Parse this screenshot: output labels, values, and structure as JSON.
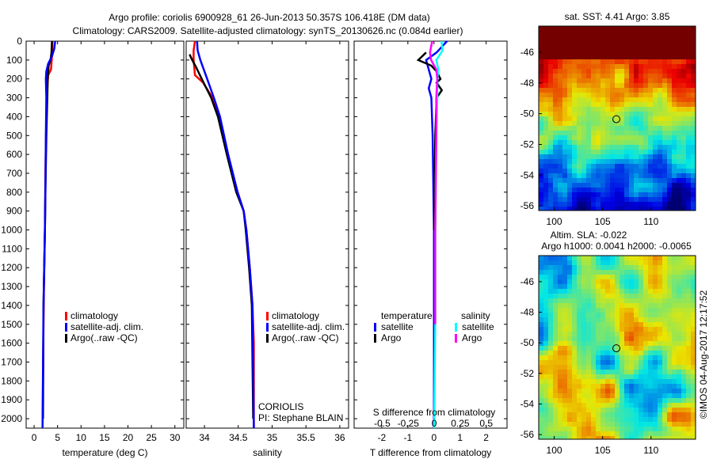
{
  "title": {
    "line1": "Argo profile: coriolis 6900928_61 26-Jun-2013 50.357S 106.418E (DM data)",
    "line2": "Climatology: CARS2009. Satellite-adjusted climatology: synTS_20130626.nc (0.084d earlier)"
  },
  "footer": "©IMOS 04-Aug-2017 12:17:52",
  "colors": {
    "climatology": "#ff0000",
    "satellite": "#0000ff",
    "argo": "#000000",
    "sal_satellite": "#00ffff",
    "sal_argo": "#ff00ff"
  },
  "chart_data": [
    {
      "type": "line",
      "id": "temperature",
      "xlabel": "temperature (deg C)",
      "xlim": [
        -1.7,
        31.9
      ],
      "ylim": [
        0,
        2050
      ],
      "xticks": [
        "0",
        "5",
        "10",
        "15",
        "20",
        "25",
        "30"
      ],
      "xtick_values": [
        0,
        5,
        10,
        15,
        20,
        25,
        30
      ],
      "yticks": [
        "0",
        "100",
        "200",
        "300",
        "400",
        "500",
        "600",
        "700",
        "800",
        "900",
        "1000",
        "1100",
        "1200",
        "1300",
        "1400",
        "1500",
        "1600",
        "1700",
        "1800",
        "1900",
        "2000"
      ],
      "legend": [
        "climatology",
        "satellite-adj. clim.",
        "Argo(..raw -QC)"
      ],
      "series": [
        {
          "name": "climatology",
          "color": "#ff0000",
          "depth": [
            0,
            80,
            150,
            180,
            250,
            400,
            700,
            1000,
            1300,
            1500,
            1800,
            2050
          ],
          "values": [
            3.9,
            3.8,
            3.6,
            3.0,
            2.8,
            2.6,
            2.4,
            2.3,
            2.1,
            2.0,
            1.9,
            1.8
          ]
        },
        {
          "name": "Argo",
          "color": "#000000",
          "depth": [
            0,
            60,
            100,
            130,
            200,
            300,
            500,
            800,
            1000,
            1400,
            2000
          ],
          "values": [
            3.8,
            3.7,
            3.5,
            3.1,
            2.9,
            2.8,
            2.6,
            2.4,
            2.3,
            2.0,
            1.9
          ]
        },
        {
          "name": "satellite",
          "color": "#0000ff",
          "depth": [
            0,
            40,
            80,
            120,
            160,
            200,
            300,
            500,
            800,
            1000,
            1400,
            2050
          ],
          "values": [
            4.5,
            4.3,
            3.8,
            3.0,
            2.6,
            2.5,
            2.6,
            2.5,
            2.4,
            2.3,
            2.0,
            1.8
          ]
        }
      ]
    },
    {
      "type": "line",
      "id": "salinity",
      "xlabel": "salinity",
      "xlim": [
        33.73,
        36.13
      ],
      "ylim": [
        0,
        2050
      ],
      "xticks": [
        "34",
        "34.5",
        "35",
        "35.5",
        "36"
      ],
      "xtick_values": [
        34,
        34.5,
        35,
        35.5,
        36
      ],
      "legend": [
        "climatology",
        "satellite-adj. clim.",
        "Argo(..raw -QC)"
      ],
      "annotation": [
        "CORIOLIS",
        "PI: Stephane BLAIN"
      ],
      "series": [
        {
          "name": "climatology",
          "color": "#ff0000",
          "depth": [
            0,
            50,
            100,
            180,
            220,
            300,
            400,
            600,
            800,
            900,
            1000,
            1200,
            1400,
            1600,
            2050
          ],
          "values": [
            33.86,
            33.84,
            33.84,
            33.86,
            33.98,
            34.12,
            34.21,
            34.34,
            34.49,
            34.58,
            34.62,
            34.67,
            34.71,
            34.73,
            34.73
          ]
        },
        {
          "name": "Argo",
          "color": "#000000",
          "depth": [
            70,
            100,
            140,
            200,
            300,
            400,
            600,
            800,
            900,
            1000,
            1200,
            1400,
            2000
          ],
          "values": [
            33.78,
            33.82,
            33.88,
            33.96,
            34.1,
            34.2,
            34.33,
            34.47,
            34.58,
            34.61,
            34.66,
            34.7,
            34.72
          ]
        },
        {
          "name": "satellite",
          "color": "#0000ff",
          "depth": [
            0,
            50,
            100,
            200,
            300,
            400,
            600,
            800,
            900,
            1000,
            1200,
            1400,
            2050
          ],
          "values": [
            33.89,
            33.9,
            33.94,
            34.04,
            34.14,
            34.23,
            34.35,
            34.49,
            34.58,
            34.62,
            34.67,
            34.71,
            34.73
          ]
        }
      ]
    },
    {
      "type": "line",
      "id": "difference",
      "xlabel": "T difference from climatology",
      "x2label": "S difference from climatology",
      "xlim": [
        -3.06,
        2.8
      ],
      "x2lim": [
        -0.77,
        0.7
      ],
      "ylim": [
        0,
        2050
      ],
      "xticks": [
        "-2",
        "-1",
        "0",
        "1",
        "2"
      ],
      "xtick_values": [
        -2,
        -1,
        0,
        1,
        2
      ],
      "x2ticks": [
        "-0.5",
        "-0.25",
        "0",
        "0.25",
        "0.5"
      ],
      "x2tick_values": [
        -0.5,
        -0.25,
        0,
        0.25,
        0.5
      ],
      "legend": {
        "temperature": "temperature",
        "salinity": "salinity",
        "satellite": "satellite",
        "argo": "Argo"
      },
      "series": [
        {
          "name": "T satellite",
          "axis": "T",
          "color": "#0000ff",
          "depth": [
            0,
            30,
            60,
            100,
            150,
            200,
            250,
            300,
            500,
            1000,
            1500,
            2050
          ],
          "values": [
            0.5,
            0.3,
            0.1,
            -0.3,
            -0.2,
            -0.1,
            -0.2,
            -0.1,
            -0.05,
            0,
            0,
            0
          ]
        },
        {
          "name": "T Argo",
          "axis": "T",
          "color": "#000000",
          "depth": [
            60,
            100,
            130,
            160,
            200,
            220,
            260,
            300,
            500,
            1000
          ],
          "values": [
            -0.3,
            -0.6,
            -0.1,
            0.1,
            0.25,
            0.1,
            0.3,
            0.1,
            0.05,
            0
          ]
        },
        {
          "name": "S satellite",
          "axis": "S",
          "color": "#00ffff",
          "depth": [
            0,
            50,
            100,
            150,
            200,
            300,
            500,
            1000,
            1500,
            2050
          ],
          "values": [
            0.07,
            0.08,
            0.02,
            0.04,
            0.03,
            0.03,
            0.02,
            0.01,
            0.01,
            0
          ]
        },
        {
          "name": "S Argo",
          "axis": "S",
          "color": "#ff00ff",
          "depth": [
            0,
            60,
            100,
            150,
            200,
            300,
            500,
            1000,
            1500
          ],
          "values": [
            -0.02,
            -0.04,
            -0.03,
            0.02,
            0.03,
            0.02,
            0.02,
            0.01,
            0.01
          ]
        }
      ]
    },
    {
      "type": "heatmap",
      "id": "sst-map",
      "title": "sat. SST: 4.41  Argo: 3.85",
      "xticks": [
        "100",
        "105",
        "110"
      ],
      "xtick_values": [
        100,
        105,
        110
      ],
      "yticks": [
        "-46",
        "-48",
        "-50",
        "-52",
        "-54",
        "-56"
      ],
      "ytick_values": [
        -46,
        -48,
        -50,
        -52,
        -54,
        -56
      ],
      "xlim": [
        98.4,
        114.6
      ],
      "ylim": [
        -56.3,
        -44.3
      ],
      "marker": {
        "lon": 106.418,
        "lat": -50.357
      }
    },
    {
      "type": "heatmap",
      "id": "sla-map",
      "title1": "Altim. SLA: -0.022",
      "title2": "Argo h1000: 0.0041 h2000: -0.0065",
      "xticks": [
        "100",
        "105",
        "110"
      ],
      "xtick_values": [
        100,
        105,
        110
      ],
      "yticks": [
        "-46",
        "-48",
        "-50",
        "-52",
        "-54",
        "-56"
      ],
      "ytick_values": [
        -46,
        -48,
        -50,
        -52,
        -54,
        -56
      ],
      "xlim": [
        98.4,
        114.6
      ],
      "ylim": [
        -56.3,
        -44.3
      ],
      "marker": {
        "lon": 106.418,
        "lat": -50.357
      }
    }
  ]
}
